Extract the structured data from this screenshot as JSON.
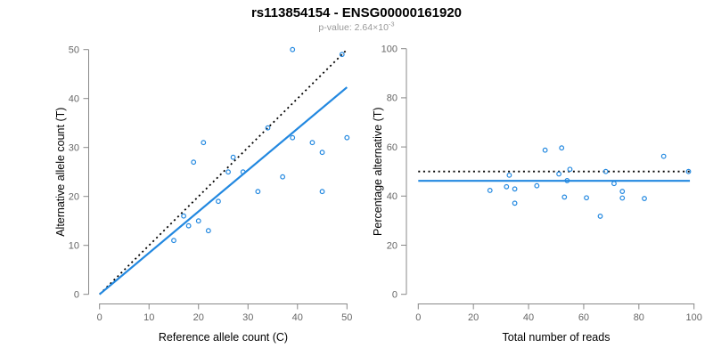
{
  "title": "rs113854154 - ENSG00000161920",
  "subtitle": {
    "prefix": "p-value: 2.64×10",
    "exponent": "-3"
  },
  "colors": {
    "points": "#2288E0",
    "fit_line": "#2288E0",
    "reference_line": "#000000",
    "axis": "#888888",
    "tick_labels": "#666666",
    "axis_titles": "#000000",
    "title": "#000000",
    "subtitle": "#999999",
    "background": "#FFFFFF"
  },
  "chart_data": [
    {
      "type": "scatter",
      "panel": "left",
      "xlabel": "Reference allele count (C)",
      "ylabel": "Alternative allele count (T)",
      "xlim": [
        0,
        50
      ],
      "ylim": [
        0,
        50
      ],
      "xticks": [
        0,
        10,
        20,
        30,
        40,
        50
      ],
      "yticks": [
        0,
        10,
        20,
        30,
        40,
        50
      ],
      "grid": false,
      "marker": "open-circle",
      "points": [
        [
          15,
          11
        ],
        [
          17,
          16
        ],
        [
          18,
          14
        ],
        [
          19,
          27
        ],
        [
          20,
          15
        ],
        [
          21,
          31
        ],
        [
          22,
          13
        ],
        [
          24,
          19
        ],
        [
          26,
          25
        ],
        [
          27,
          28
        ],
        [
          29,
          25
        ],
        [
          32,
          21
        ],
        [
          34,
          34
        ],
        [
          37,
          24
        ],
        [
          39,
          32
        ],
        [
          39,
          50
        ],
        [
          43,
          31
        ],
        [
          45,
          21
        ],
        [
          45,
          29
        ],
        [
          49,
          49
        ],
        [
          50,
          32
        ]
      ],
      "reference_line": {
        "style": "dotted",
        "x": [
          0,
          50
        ],
        "y": [
          0,
          50
        ]
      },
      "fit_line": {
        "style": "solid",
        "x": [
          0,
          50
        ],
        "y": [
          0,
          42.3
        ]
      }
    },
    {
      "type": "scatter",
      "panel": "right",
      "xlabel": "Total number of reads",
      "ylabel": "Percentage alternative (T)",
      "xlim": [
        0,
        100
      ],
      "ylim": [
        0,
        100
      ],
      "xticks": [
        0,
        20,
        40,
        60,
        80,
        100
      ],
      "yticks": [
        0,
        20,
        40,
        60,
        80,
        100
      ],
      "grid": false,
      "marker": "open-circle",
      "points": [
        [
          26,
          42.3
        ],
        [
          32,
          43.8
        ],
        [
          33,
          48.5
        ],
        [
          35,
          42.9
        ],
        [
          35,
          37.1
        ],
        [
          43,
          44.2
        ],
        [
          46,
          58.7
        ],
        [
          51,
          49
        ],
        [
          52,
          59.6
        ],
        [
          53,
          39.6
        ],
        [
          54,
          46.3
        ],
        [
          55,
          50.9
        ],
        [
          61,
          39.3
        ],
        [
          66,
          31.8
        ],
        [
          68,
          50
        ],
        [
          71,
          45.1
        ],
        [
          74,
          41.9
        ],
        [
          74,
          39.2
        ],
        [
          82,
          39
        ],
        [
          89,
          56.2
        ],
        [
          98,
          50
        ]
      ],
      "reference_line": {
        "style": "dotted",
        "x": [
          0,
          98.5
        ],
        "y": [
          50,
          50
        ]
      },
      "fit_line": {
        "style": "solid",
        "x": [
          0,
          98.5
        ],
        "y": [
          46.2,
          46.2
        ]
      }
    }
  ]
}
